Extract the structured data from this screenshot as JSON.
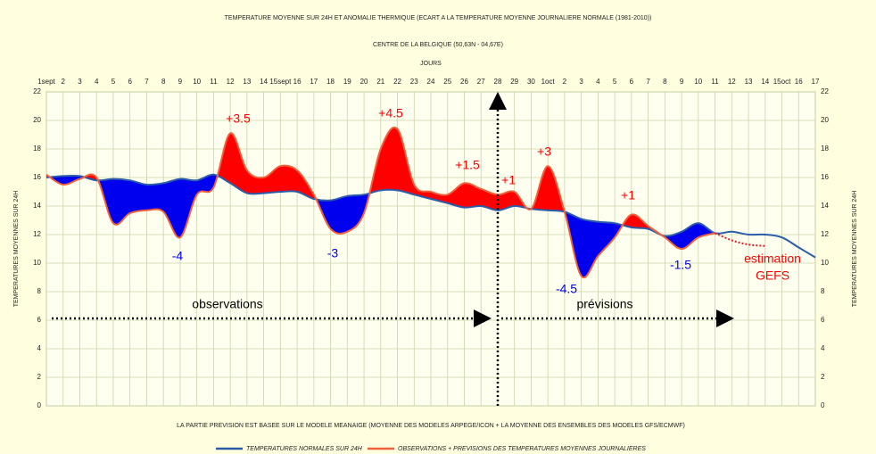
{
  "chart_data": {
    "type": "line",
    "title": "TEMPERATURE MOYENNE SUR 24H ET  ANOMALIE THERMIQUE (ECART A LA TEMPERATURE MOYENNE JOURNALIERE NORMALE (1981-2010))",
    "subtitle": "CENTRE DE LA BELGIQUE (50,63N - 04,67E)",
    "x_label": "JOURS",
    "y_label": "TEMPERATURES MOYENNES SUR 24H",
    "note": "LA PARTIE PREVISION EST BASEE SUR LE MODELE MEANAIGE (MOYENNE DES MODELES ARPEGE/ICON + LA MOYENNE DES ENSEMBLES DES MODELES GFS/ECMWF)",
    "categories": [
      "1sept",
      "2",
      "3",
      "4",
      "5",
      "6",
      "7",
      "8",
      "9",
      "10",
      "11",
      "12",
      "13",
      "14",
      "15sept",
      "16",
      "17",
      "18",
      "19",
      "20",
      "21",
      "22",
      "23",
      "24",
      "25",
      "26",
      "27",
      "28",
      "29",
      "30",
      "1oct",
      "2",
      "3",
      "4",
      "5",
      "6",
      "7",
      "8",
      "9",
      "10",
      "11",
      "12",
      "13",
      "14",
      "15oct",
      "16",
      "17"
    ],
    "series": [
      {
        "name": "TEMPERATURES NORMALES SUR 24H",
        "color": "#2a5caa",
        "values": [
          16.0,
          16.1,
          16.1,
          15.8,
          15.9,
          15.8,
          15.5,
          15.6,
          15.9,
          15.8,
          16.2,
          15.6,
          14.9,
          14.9,
          15.0,
          15.0,
          14.5,
          14.4,
          14.7,
          14.8,
          15.1,
          15.1,
          14.8,
          14.5,
          14.2,
          13.9,
          14.0,
          13.7,
          14.0,
          13.8,
          13.7,
          13.6,
          13.1,
          12.9,
          12.8,
          12.5,
          12.4,
          11.9,
          12.2,
          12.8,
          12.1,
          12.2,
          12.0,
          12.0,
          11.8,
          11.1,
          10.4
        ]
      },
      {
        "name": "OBSERVATIONS + PREVISIONS DES TEMPERATURES MOYENNES JOURNALIERES",
        "color": "#f0603a",
        "values": [
          16.2,
          15.5,
          15.9,
          16.0,
          12.8,
          13.5,
          13.7,
          13.6,
          11.8,
          14.8,
          15.3,
          19.1,
          16.5,
          16.0,
          16.8,
          16.5,
          14.8,
          12.4,
          12.2,
          13.5,
          18.0,
          19.4,
          15.5,
          15.0,
          14.8,
          15.6,
          15.2,
          14.8,
          15.0,
          13.8,
          16.8,
          13.6,
          9.1,
          10.5,
          11.8,
          13.4,
          12.6,
          11.8,
          11.0,
          11.8,
          12.1,
          null,
          null,
          null,
          null,
          null,
          null
        ]
      }
    ],
    "gefs_estimate": {
      "color": "#e02020",
      "values": [
        null,
        null,
        null,
        null,
        null,
        null,
        null,
        null,
        null,
        null,
        null,
        null,
        null,
        null,
        null,
        null,
        null,
        null,
        null,
        null,
        null,
        null,
        null,
        null,
        null,
        null,
        null,
        null,
        null,
        null,
        null,
        null,
        null,
        null,
        null,
        null,
        null,
        null,
        null,
        null,
        12.1,
        11.6,
        11.3,
        11.2,
        null,
        null,
        null
      ]
    },
    "above_color": "#ff0000",
    "below_color": "#0000ee",
    "annotations": [
      "+3.5",
      "+4.5",
      "+1.5",
      "+1",
      "+3",
      "+1",
      "-4",
      "-3",
      "-4.5",
      "-1.5",
      "estimation",
      "GEFS",
      "observations",
      "prévisions"
    ],
    "ylim": [
      0,
      22
    ],
    "yticks": [
      0,
      2,
      4,
      6,
      8,
      10,
      12,
      14,
      16,
      18,
      20,
      22
    ],
    "grid": true
  }
}
